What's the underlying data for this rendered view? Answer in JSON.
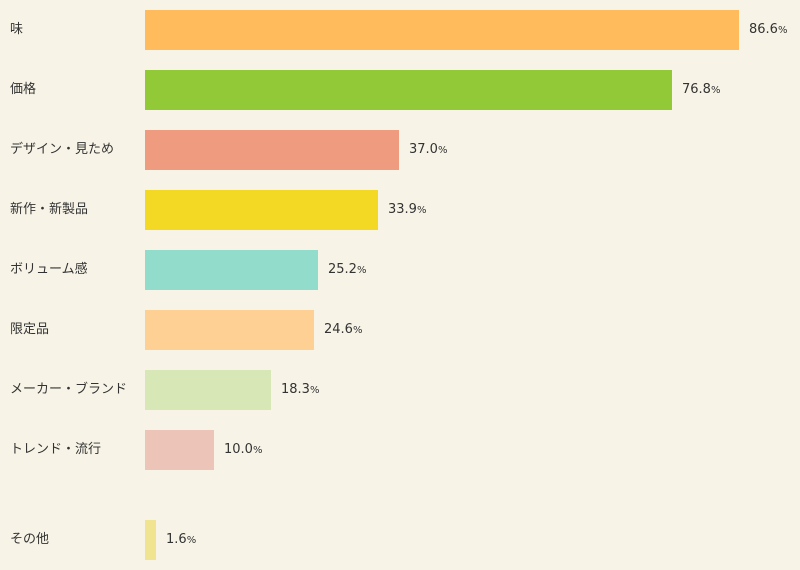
{
  "chart_data": {
    "type": "bar",
    "orientation": "horizontal",
    "categories": [
      "味",
      "価格",
      "デザイン・見ため",
      "新作・新製品",
      "ボリューム感",
      "限定品",
      "メーカー・ブランド",
      "トレンド・流行",
      "その他"
    ],
    "values": [
      86.6,
      76.8,
      37.0,
      33.9,
      25.2,
      24.6,
      18.3,
      10.0,
      1.6
    ],
    "value_labels": [
      "86.6",
      "76.8",
      "37.0",
      "33.9",
      "25.2",
      "24.6",
      "18.3",
      "10.0",
      "1.6"
    ],
    "unit": "%",
    "colors": [
      "#ffbb5c",
      "#92c936",
      "#ee9b80",
      "#f3d924",
      "#92dccc",
      "#fed093",
      "#d7e7b5",
      "#ecc4b8",
      "#f1e491"
    ],
    "xlim": [
      0,
      100
    ],
    "grid": false,
    "legend": "none"
  }
}
